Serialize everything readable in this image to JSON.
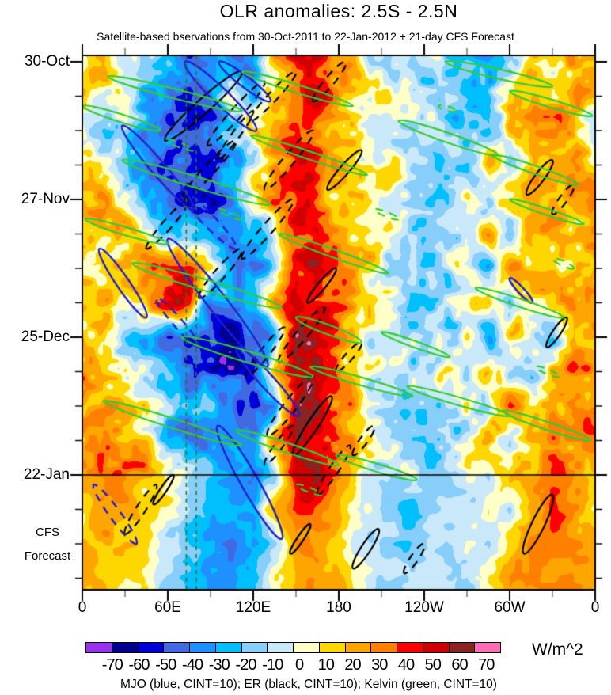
{
  "title": "OLR anomalies: 2.5S - 2.5N",
  "subtitle": "Satellite-based bservations from 30-Oct-2011 to 22-Jan-2012 + 21-day CFS Forecast",
  "caption": "MJO (blue, CINT=10); ER (black, CINT=10); Kelvin (green, CINT=10)",
  "axes": {
    "x_major_labels": [
      "0",
      "60E",
      "120E",
      "180",
      "120W",
      "60W",
      "0"
    ],
    "y_major_labels": [
      "30-Oct",
      "27-Nov",
      "25-Dec",
      "22-Jan"
    ],
    "forecast_label_1": "CFS",
    "forecast_label_2": "Forecast"
  },
  "colorbar": {
    "unit": "W/m^2",
    "tick_labels": [
      "-70",
      "-60",
      "-50",
      "-40",
      "-30",
      "-20",
      "-10",
      "0",
      "10",
      "20",
      "30",
      "40",
      "50",
      "60",
      "70"
    ],
    "colors": [
      "#9B30F0",
      "#000090",
      "#0000D8",
      "#4169E1",
      "#1E90FF",
      "#00BFFF",
      "#87CEFA",
      "#C9E8FA",
      "#FFFFC8",
      "#FFD700",
      "#FFA500",
      "#FF8000",
      "#FF0000",
      "#D00000",
      "#8B2323",
      "#FF6EB4"
    ]
  },
  "chart_data": {
    "type": "heatmap",
    "title": "OLR anomalies: 2.5S - 2.5N",
    "x_axis": {
      "label_deg": [
        0,
        60,
        120,
        180,
        240,
        300,
        360
      ],
      "range_deg": [
        0,
        360
      ],
      "minor_step_deg": 30
    },
    "y_axis": {
      "major_days": [
        0,
        28,
        56,
        84
      ],
      "minor_step_days": 7,
      "start_date": "30-Oct-2011",
      "obs_end_date": "22-Jan-2012",
      "forecast_days": 21,
      "total_days_shown": 107
    },
    "unit": "W/m^2",
    "levels": [
      -70,
      -60,
      -50,
      -40,
      -30,
      -20,
      -10,
      0,
      10,
      20,
      30,
      40,
      50,
      60,
      70
    ],
    "lon_step_deg": 15,
    "day_step": 7,
    "field": [
      [
        20,
        25,
        5,
        -15,
        -20,
        -40,
        -30,
        -45,
        -25,
        15,
        45,
        50,
        25,
        10,
        0,
        -5,
        -5,
        -15,
        -10,
        -35,
        -15,
        20,
        15,
        30
      ],
      [
        15,
        10,
        -10,
        -25,
        -30,
        -50,
        -35,
        10,
        -30,
        20,
        40,
        45,
        30,
        15,
        5,
        0,
        -10,
        -5,
        -20,
        -30,
        15,
        25,
        20,
        25
      ],
      [
        -10,
        -20,
        -15,
        -30,
        -45,
        -55,
        -40,
        -20,
        20,
        35,
        45,
        40,
        20,
        10,
        0,
        -5,
        -10,
        -15,
        -25,
        -20,
        25,
        20,
        25,
        20
      ],
      [
        15,
        10,
        -20,
        -40,
        -55,
        -60,
        -50,
        -30,
        -10,
        30,
        50,
        45,
        25,
        15,
        5,
        0,
        -5,
        -20,
        -15,
        25,
        -20,
        25,
        20,
        25
      ],
      [
        30,
        20,
        10,
        -25,
        -45,
        -60,
        -55,
        -35,
        15,
        35,
        50,
        40,
        25,
        10,
        0,
        -5,
        -10,
        -10,
        10,
        -25,
        20,
        20,
        30,
        35
      ],
      [
        20,
        15,
        20,
        10,
        -15,
        -25,
        -30,
        -40,
        -35,
        20,
        45,
        50,
        30,
        15,
        5,
        0,
        -5,
        -10,
        -15,
        20,
        -15,
        25,
        20,
        25
      ],
      [
        10,
        15,
        25,
        30,
        45,
        55,
        25,
        -30,
        -40,
        -20,
        40,
        55,
        35,
        15,
        5,
        -5,
        -10,
        -5,
        10,
        -30,
        25,
        20,
        15,
        20
      ],
      [
        15,
        20,
        10,
        25,
        50,
        45,
        -35,
        -45,
        -30,
        30,
        50,
        45,
        30,
        10,
        0,
        -10,
        -15,
        -10,
        -5,
        25,
        -25,
        15,
        25,
        25
      ],
      [
        20,
        10,
        -15,
        -30,
        -45,
        -60,
        -50,
        -55,
        -45,
        -30,
        55,
        50,
        35,
        15,
        0,
        -10,
        -15,
        -5,
        10,
        -30,
        20,
        10,
        -15,
        30
      ],
      [
        25,
        15,
        20,
        -10,
        -25,
        -40,
        -55,
        -60,
        -50,
        35,
        60,
        55,
        30,
        10,
        -5,
        -15,
        -10,
        5,
        -10,
        25,
        -20,
        -15,
        20,
        35
      ],
      [
        30,
        25,
        15,
        20,
        -15,
        -30,
        -25,
        -40,
        -55,
        -35,
        50,
        60,
        35,
        10,
        -5,
        -15,
        -20,
        -10,
        5,
        -25,
        30,
        20,
        25,
        30
      ],
      [
        25,
        30,
        20,
        15,
        -20,
        -35,
        -30,
        -25,
        -45,
        30,
        60,
        50,
        25,
        5,
        -10,
        -20,
        -15,
        -5,
        -15,
        30,
        -20,
        25,
        30,
        35
      ],
      [
        20,
        25,
        30,
        20,
        10,
        -15,
        -20,
        -30,
        -40,
        -20,
        55,
        60,
        30,
        5,
        -10,
        -15,
        -10,
        -10,
        5,
        -20,
        25,
        30,
        35,
        30
      ],
      [
        15,
        30,
        25,
        15,
        5,
        -10,
        -25,
        -35,
        -30,
        25,
        40,
        35,
        20,
        0,
        -15,
        -20,
        -15,
        -5,
        -10,
        15,
        -15,
        25,
        40,
        25
      ],
      [
        20,
        25,
        15,
        10,
        -5,
        -15,
        -30,
        -40,
        -35,
        -15,
        30,
        25,
        15,
        -5,
        -15,
        -15,
        -10,
        -10,
        5,
        -10,
        20,
        30,
        35,
        30
      ],
      [
        25,
        20,
        10,
        5,
        -10,
        -20,
        -25,
        -30,
        -25,
        10,
        25,
        30,
        20,
        0,
        -10,
        -10,
        -5,
        -5,
        -10,
        15,
        25,
        25,
        30,
        25
      ]
    ],
    "noise": {
      "amp1": 13,
      "scale1": 26,
      "amp2": 11,
      "scale2": 11,
      "seed": 7,
      "forecast_smooth": 0.5
    },
    "overlays": {
      "obs_end_line_day": 84,
      "site_lines": {
        "color": "#1E7D1E",
        "lons": [
          73,
          80
        ]
      },
      "kelvin": {
        "name": "Kelvin",
        "cint": 10,
        "color": "#33CC33",
        "width": 2.2,
        "items": [
          [
            18,
            3,
            112,
            10,
            6,
            "s"
          ],
          [
            0,
            9,
            55,
            14,
            5,
            "s"
          ],
          [
            112,
            2,
            190,
            9,
            5,
            "s"
          ],
          [
            255,
            0,
            330,
            5,
            6,
            "s"
          ],
          [
            300,
            6,
            358,
            11,
            5,
            "s"
          ],
          [
            28,
            20,
            132,
            29,
            7,
            "s"
          ],
          [
            118,
            15,
            200,
            23,
            5,
            "s"
          ],
          [
            222,
            12,
            292,
            19,
            6,
            "s"
          ],
          [
            288,
            19,
            348,
            25,
            5,
            "s"
          ],
          [
            2,
            32,
            60,
            37,
            5,
            "s"
          ],
          [
            35,
            41,
            140,
            50,
            7,
            "s"
          ],
          [
            138,
            35,
            215,
            43,
            5,
            "s"
          ],
          [
            150,
            52,
            196,
            57,
            6,
            "s"
          ],
          [
            276,
            46,
            338,
            52,
            5,
            "s"
          ],
          [
            70,
            56,
            162,
            64,
            7,
            "s"
          ],
          [
            160,
            62,
            232,
            68,
            5,
            "s"
          ],
          [
            228,
            66,
            300,
            72,
            5,
            "s"
          ],
          [
            295,
            71,
            357,
            77,
            5,
            "s"
          ],
          [
            15,
            69,
            112,
            78,
            6,
            "s"
          ],
          [
            108,
            75,
            180,
            82,
            6,
            "s"
          ],
          [
            178,
            80,
            235,
            85,
            5,
            "s"
          ],
          [
            300,
            28,
            352,
            33,
            4,
            "s"
          ],
          [
            210,
            55,
            258,
            60,
            4,
            "s"
          ],
          [
            60,
            16,
            78,
            18,
            3,
            "d"
          ],
          [
            95,
            30,
            112,
            32,
            3,
            "d"
          ],
          [
            250,
            9,
            262,
            10,
            3,
            "d"
          ],
          [
            318,
            62,
            335,
            64,
            3,
            "d"
          ],
          [
            150,
            86,
            168,
            88,
            3,
            "d"
          ],
          [
            205,
            30,
            222,
            32,
            3,
            "d"
          ],
          [
            330,
            40,
            345,
            42,
            3,
            "d"
          ]
        ]
      },
      "mjo": {
        "name": "MJO",
        "cint": 10,
        "color": "#2020CC",
        "width": 2.4,
        "items": [
          [
            72,
            0,
            122,
            14,
            10,
            "s"
          ],
          [
            96,
            0,
            132,
            8,
            7,
            "s"
          ],
          [
            28,
            13,
            78,
            30,
            9,
            "s"
          ],
          [
            68,
            26,
            108,
            38,
            8,
            "d"
          ],
          [
            12,
            38,
            45,
            52,
            8,
            "s"
          ],
          [
            60,
            36,
            130,
            62,
            12,
            "s"
          ],
          [
            52,
            48,
            82,
            58,
            6,
            "d"
          ],
          [
            108,
            58,
            152,
            72,
            9,
            "s"
          ],
          [
            95,
            74,
            140,
            97,
            11,
            "s"
          ],
          [
            8,
            86,
            38,
            98,
            7,
            "d"
          ],
          [
            300,
            44,
            316,
            49,
            4,
            "s"
          ]
        ]
      },
      "er": {
        "name": "ER",
        "cint": 10,
        "color": "#000000",
        "width": 2.2,
        "items": [
          [
            112,
            2,
            58,
            16,
            9,
            "s"
          ],
          [
            128,
            4,
            88,
            17,
            7,
            "d"
          ],
          [
            150,
            2,
            118,
            12,
            6,
            "d"
          ],
          [
            185,
            0,
            162,
            8,
            6,
            "d"
          ],
          [
            108,
            16,
            70,
            28,
            7,
            "d"
          ],
          [
            162,
            14,
            128,
            26,
            7,
            "d"
          ],
          [
            196,
            18,
            172,
            26,
            6,
            "s"
          ],
          [
            330,
            20,
            312,
            27,
            6,
            "s"
          ],
          [
            345,
            25,
            330,
            31,
            5,
            "d"
          ],
          [
            75,
            28,
            45,
            38,
            6,
            "d"
          ],
          [
            148,
            28,
            112,
            40,
            7,
            "d"
          ],
          [
            112,
            38,
            82,
            48,
            7,
            "d"
          ],
          [
            178,
            42,
            158,
            49,
            5,
            "s"
          ],
          [
            170,
            50,
            138,
            61,
            7,
            "d"
          ],
          [
            142,
            54,
            115,
            64,
            6,
            "d"
          ],
          [
            196,
            57,
            178,
            63,
            5,
            "d"
          ],
          [
            340,
            52,
            326,
            58,
            5,
            "s"
          ],
          [
            162,
            64,
            130,
            76,
            8,
            "d"
          ],
          [
            175,
            68,
            148,
            80,
            7,
            "s"
          ],
          [
            148,
            74,
            128,
            82,
            5,
            "d"
          ],
          [
            188,
            78,
            165,
            88,
            6,
            "d"
          ],
          [
            205,
            74,
            190,
            80,
            5,
            "d"
          ],
          [
            52,
            86,
            30,
            96,
            6,
            "d"
          ],
          [
            64,
            84,
            50,
            90,
            4,
            "s"
          ],
          [
            208,
            95,
            190,
            103,
            6,
            "s"
          ],
          [
            160,
            94,
            146,
            100,
            4,
            "s"
          ],
          [
            330,
            88,
            310,
            100,
            8,
            "s"
          ],
          [
            240,
            98,
            226,
            104,
            5,
            "d"
          ],
          [
            120,
            10,
            95,
            20,
            5,
            "d"
          ]
        ]
      }
    }
  }
}
